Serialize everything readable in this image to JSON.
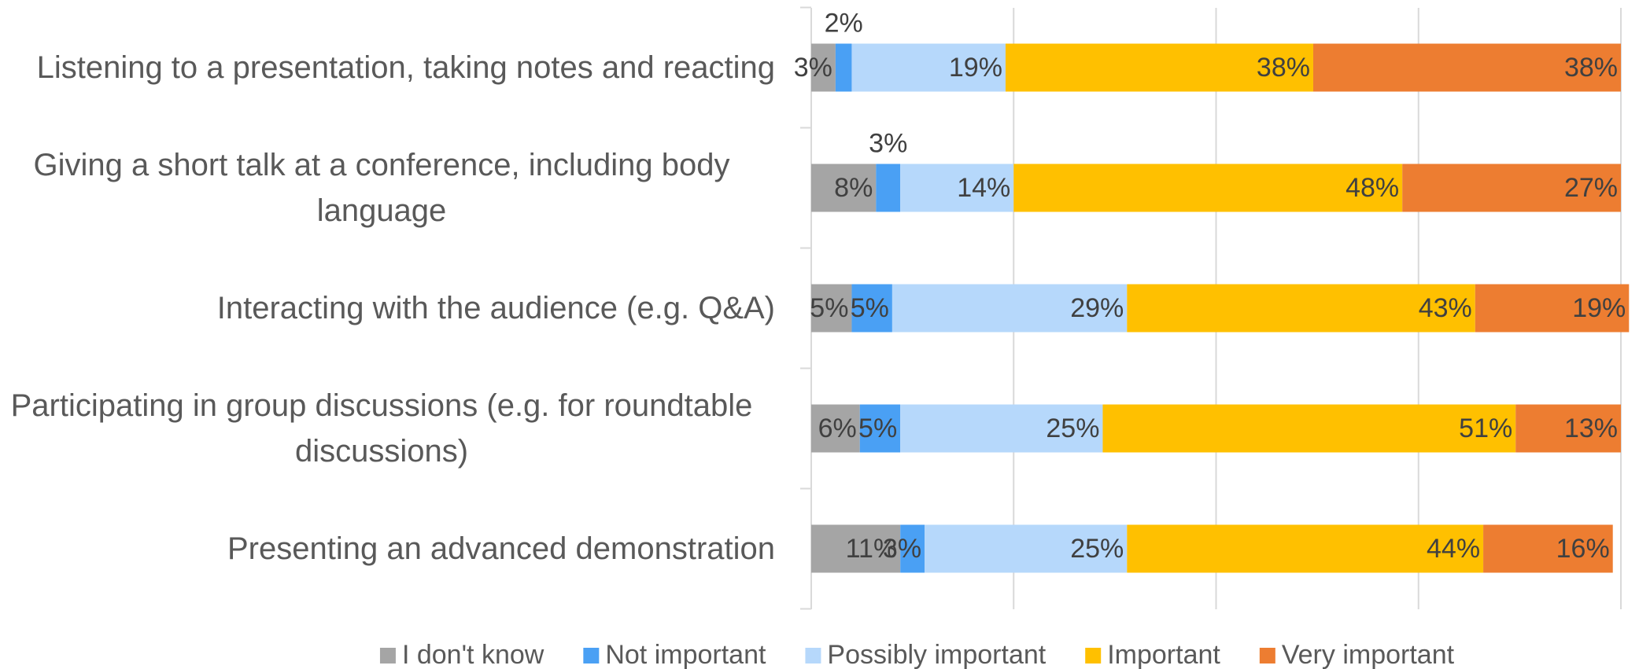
{
  "chart_data": {
    "type": "stacked-bar-horizontal",
    "categories": [
      "Listening to a presentation, taking notes and reacting",
      "Giving a short talk at a conference, including body language",
      "Interacting with the audience (e.g. Q&A)",
      "Participating in group discussions (e.g. for roundtable discussions)",
      "Presenting an advanced demonstration"
    ],
    "series": [
      {
        "name": "I don't know",
        "color": "#a5a5a5",
        "values": [
          3,
          8,
          5,
          6,
          11
        ],
        "value_labels": [
          "3%",
          "8%",
          "5%",
          "6%",
          "11%"
        ]
      },
      {
        "name": "Not important",
        "color": "#4aa0f4",
        "values": [
          2,
          3,
          5,
          5,
          3
        ],
        "value_labels": [
          "2%",
          "3%",
          "5%",
          "5%",
          "3%"
        ]
      },
      {
        "name": "Possibly important",
        "color": "#b6d8fb",
        "values": [
          19,
          14,
          29,
          25,
          25
        ],
        "value_labels": [
          "19%",
          "14%",
          "29%",
          "25%",
          "25%"
        ]
      },
      {
        "name": "Important",
        "color": "#ffc000",
        "values": [
          38,
          48,
          43,
          51,
          44
        ],
        "value_labels": [
          "38%",
          "48%",
          "43%",
          "51%",
          "44%"
        ]
      },
      {
        "name": "Very important",
        "color": "#ed7d31",
        "values": [
          38,
          27,
          19,
          13,
          16
        ],
        "value_labels": [
          "38%",
          "27%",
          "19%",
          "13%",
          "16%"
        ]
      }
    ],
    "xlim": [
      0,
      100
    ],
    "xticks": [
      0,
      25,
      50,
      75,
      100
    ],
    "grid": true,
    "legend": "bottom"
  }
}
